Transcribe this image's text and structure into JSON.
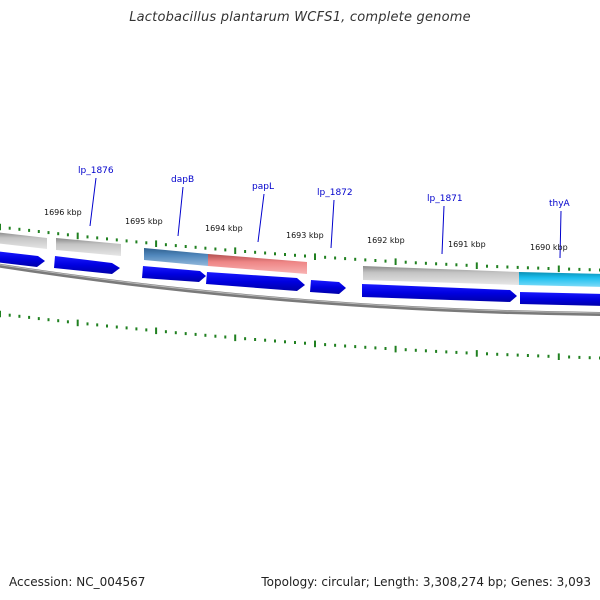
{
  "title": "Lactobacillus plantarum WCFS1, complete genome",
  "footer": {
    "accession": "Accession: NC_004567",
    "summary": "Topology: circular; Length: 3,308,274 bp; Genes: 3,093"
  },
  "colors": {
    "backbone": "#808080",
    "cds_arrow": "#0000ee",
    "gene_default": "#b8b8b8",
    "tick": "#208020",
    "label_line": "#0000cc"
  },
  "kbp_labels": [
    "1696 kbp",
    "1695 kbp",
    "1694 kbp",
    "1693 kbp",
    "1692 kbp",
    "1691 kbp",
    "1690 kbp"
  ],
  "gene_labels": [
    {
      "name": "lp_1876"
    },
    {
      "name": "dapB"
    },
    {
      "name": "papL"
    },
    {
      "name": "lp_1872"
    },
    {
      "name": "lp_1871"
    },
    {
      "name": "thyA"
    }
  ],
  "gene_bars": [
    {
      "name": "gene-bar-left-edge",
      "color": "#b8b8b8"
    },
    {
      "name": "gene-bar-lp_1876",
      "color": "#b8b8b8"
    },
    {
      "name": "gene-bar-dapB",
      "color": "#4a7eb0"
    },
    {
      "name": "gene-bar-papL",
      "color": "#f08080"
    },
    {
      "name": "gene-bar-lp_1871",
      "color": "#b8b8b8"
    },
    {
      "name": "gene-bar-thyA",
      "color": "#33bbee"
    }
  ]
}
